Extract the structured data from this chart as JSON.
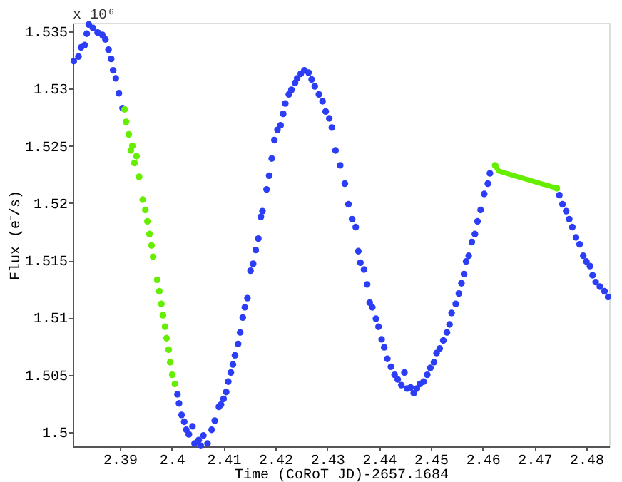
{
  "chart_data": {
    "type": "scatter",
    "xlabel": "Time (CoRoT JD)-2657.1684",
    "ylabel": "Flux (e⁻/s)",
    "annotations": [
      "x 10⁶"
    ],
    "xlim": [
      2.3809,
      2.4844
    ],
    "ylim": [
      1.49875,
      1.53575
    ],
    "xticks": [
      2.39,
      2.4,
      2.41,
      2.42,
      2.43,
      2.44,
      2.45,
      2.46,
      2.47,
      2.48
    ],
    "yticks": [
      1.5,
      1.505,
      1.51,
      1.515,
      1.52,
      1.525,
      1.53,
      1.535
    ],
    "marker": "circle",
    "series": [
      {
        "color": "#2b3df5",
        "x": [
          2.3811,
          2.382,
          2.3825,
          2.3832,
          2.3836,
          2.384,
          2.3848,
          2.3857,
          2.3866,
          2.3872,
          2.3878,
          2.3883,
          2.3887,
          2.3892,
          2.3898,
          2.3905,
          2.4011,
          2.4014,
          2.4019,
          2.4024,
          2.4028,
          2.4033,
          2.404,
          2.4044,
          2.4052,
          2.4056,
          2.4061,
          2.4069,
          2.4077,
          2.4083,
          2.4091,
          2.4095,
          2.41,
          2.4105,
          2.4109,
          2.4114,
          2.4118,
          2.4122,
          2.4128,
          2.4132,
          2.4137,
          2.4141,
          2.4146,
          2.4152,
          2.4157,
          2.4162,
          2.4167,
          2.4172,
          2.4175,
          2.4183,
          2.4188,
          2.4193,
          2.4198,
          2.4204,
          2.421,
          2.4215,
          2.4219,
          2.4226,
          2.4231,
          2.4238,
          2.4242,
          2.4249,
          2.4256,
          2.4264,
          2.427,
          2.4276,
          2.4284,
          2.4291,
          2.4297,
          2.4304,
          2.4309,
          2.4316,
          2.4325,
          2.4334,
          2.4341,
          2.4348,
          2.4355,
          2.436,
          2.4364,
          2.4371,
          2.4377,
          2.4382,
          2.4387,
          2.4394,
          2.4399,
          2.4405,
          2.441,
          2.4416,
          2.4423,
          2.443,
          2.4436,
          2.4443,
          2.4449,
          2.4454,
          2.4461,
          2.4467,
          2.4473,
          2.4479,
          2.4486,
          2.4493,
          2.4499,
          2.4506,
          2.4511,
          2.4517,
          2.4524,
          2.4531,
          2.4536,
          2.454,
          2.4548,
          2.4554,
          2.4559,
          2.4564,
          2.4568,
          2.4573,
          2.4579,
          2.4585,
          2.459,
          2.4596,
          2.4603,
          2.461,
          2.4614,
          2.4748,
          2.4754,
          2.4761,
          2.4767,
          2.4773,
          2.478,
          2.4787,
          2.4794,
          2.48,
          2.4807,
          2.4812,
          2.4818,
          2.4826,
          2.4835,
          2.4842
        ],
        "values": [
          1.5324,
          1.5328,
          1.5336,
          1.5338,
          1.5348,
          1.5356,
          1.5353,
          1.5349,
          1.5347,
          1.5343,
          1.5334,
          1.5326,
          1.5316,
          1.5309,
          1.5296,
          1.5283,
          1.5033,
          1.5025,
          1.5015,
          1.5009,
          1.5002,
          1.4998,
          1.5005,
          1.499,
          1.4993,
          1.4988,
          1.4997,
          1.499,
          1.5002,
          1.501,
          1.5022,
          1.5024,
          1.5029,
          1.5035,
          1.5044,
          1.5052,
          1.5059,
          1.5067,
          1.5077,
          1.5087,
          1.51,
          1.5109,
          1.5117,
          1.5141,
          1.5147,
          1.5159,
          1.5169,
          1.5188,
          1.5193,
          1.5212,
          1.5224,
          1.5239,
          1.5255,
          1.5264,
          1.5268,
          1.5278,
          1.5287,
          1.5295,
          1.5299,
          1.5305,
          1.5309,
          1.5313,
          1.5316,
          1.5314,
          1.5308,
          1.5302,
          1.5295,
          1.5289,
          1.528,
          1.5274,
          1.5266,
          1.5246,
          1.5233,
          1.5217,
          1.5199,
          1.5186,
          1.5179,
          1.5158,
          1.5148,
          1.5142,
          1.5129,
          1.5113,
          1.5109,
          1.5099,
          1.5092,
          1.5081,
          1.5074,
          1.5064,
          1.5057,
          1.505,
          1.5046,
          1.5041,
          1.5052,
          1.5038,
          1.5039,
          1.5034,
          1.5038,
          1.5042,
          1.5044,
          1.505,
          1.5056,
          1.5061,
          1.5069,
          1.5073,
          1.508,
          1.5087,
          1.5094,
          1.5104,
          1.5112,
          1.5121,
          1.513,
          1.5138,
          1.5149,
          1.5154,
          1.5166,
          1.5173,
          1.5184,
          1.5194,
          1.5208,
          1.5217,
          1.5226,
          1.5207,
          1.5199,
          1.5193,
          1.5186,
          1.5179,
          1.517,
          1.5164,
          1.5154,
          1.5149,
          1.5145,
          1.5137,
          1.5131,
          1.5127,
          1.5123,
          1.5118
        ]
      },
      {
        "color": "#66ee00",
        "x": [
          2.3909,
          2.3912,
          2.3917,
          2.3921,
          2.3924,
          2.3928,
          2.3932,
          2.3937,
          2.3944,
          2.3949,
          2.3953,
          2.3957,
          2.3961,
          2.3964,
          2.3972,
          2.3976,
          2.398,
          2.3983,
          2.3987,
          2.399,
          2.3994,
          2.3997,
          2.4001,
          2.4006,
          2.4624,
          2.4743
        ],
        "values": [
          1.5282,
          1.5271,
          1.526,
          1.5246,
          1.525,
          1.5235,
          1.5241,
          1.5223,
          1.5203,
          1.5194,
          1.5184,
          1.5173,
          1.5163,
          1.5153,
          1.5133,
          1.5123,
          1.5112,
          1.5102,
          1.5092,
          1.5082,
          1.5072,
          1.5061,
          1.505,
          1.5042,
          1.5233,
          1.5213
        ]
      },
      {
        "type": "line",
        "color": "#66ee00",
        "line_style": "solid",
        "marker": "none",
        "x": [
          2.4624,
          2.4631,
          2.4743
        ],
        "values": [
          1.5233,
          1.5228,
          1.5213
        ]
      }
    ]
  }
}
